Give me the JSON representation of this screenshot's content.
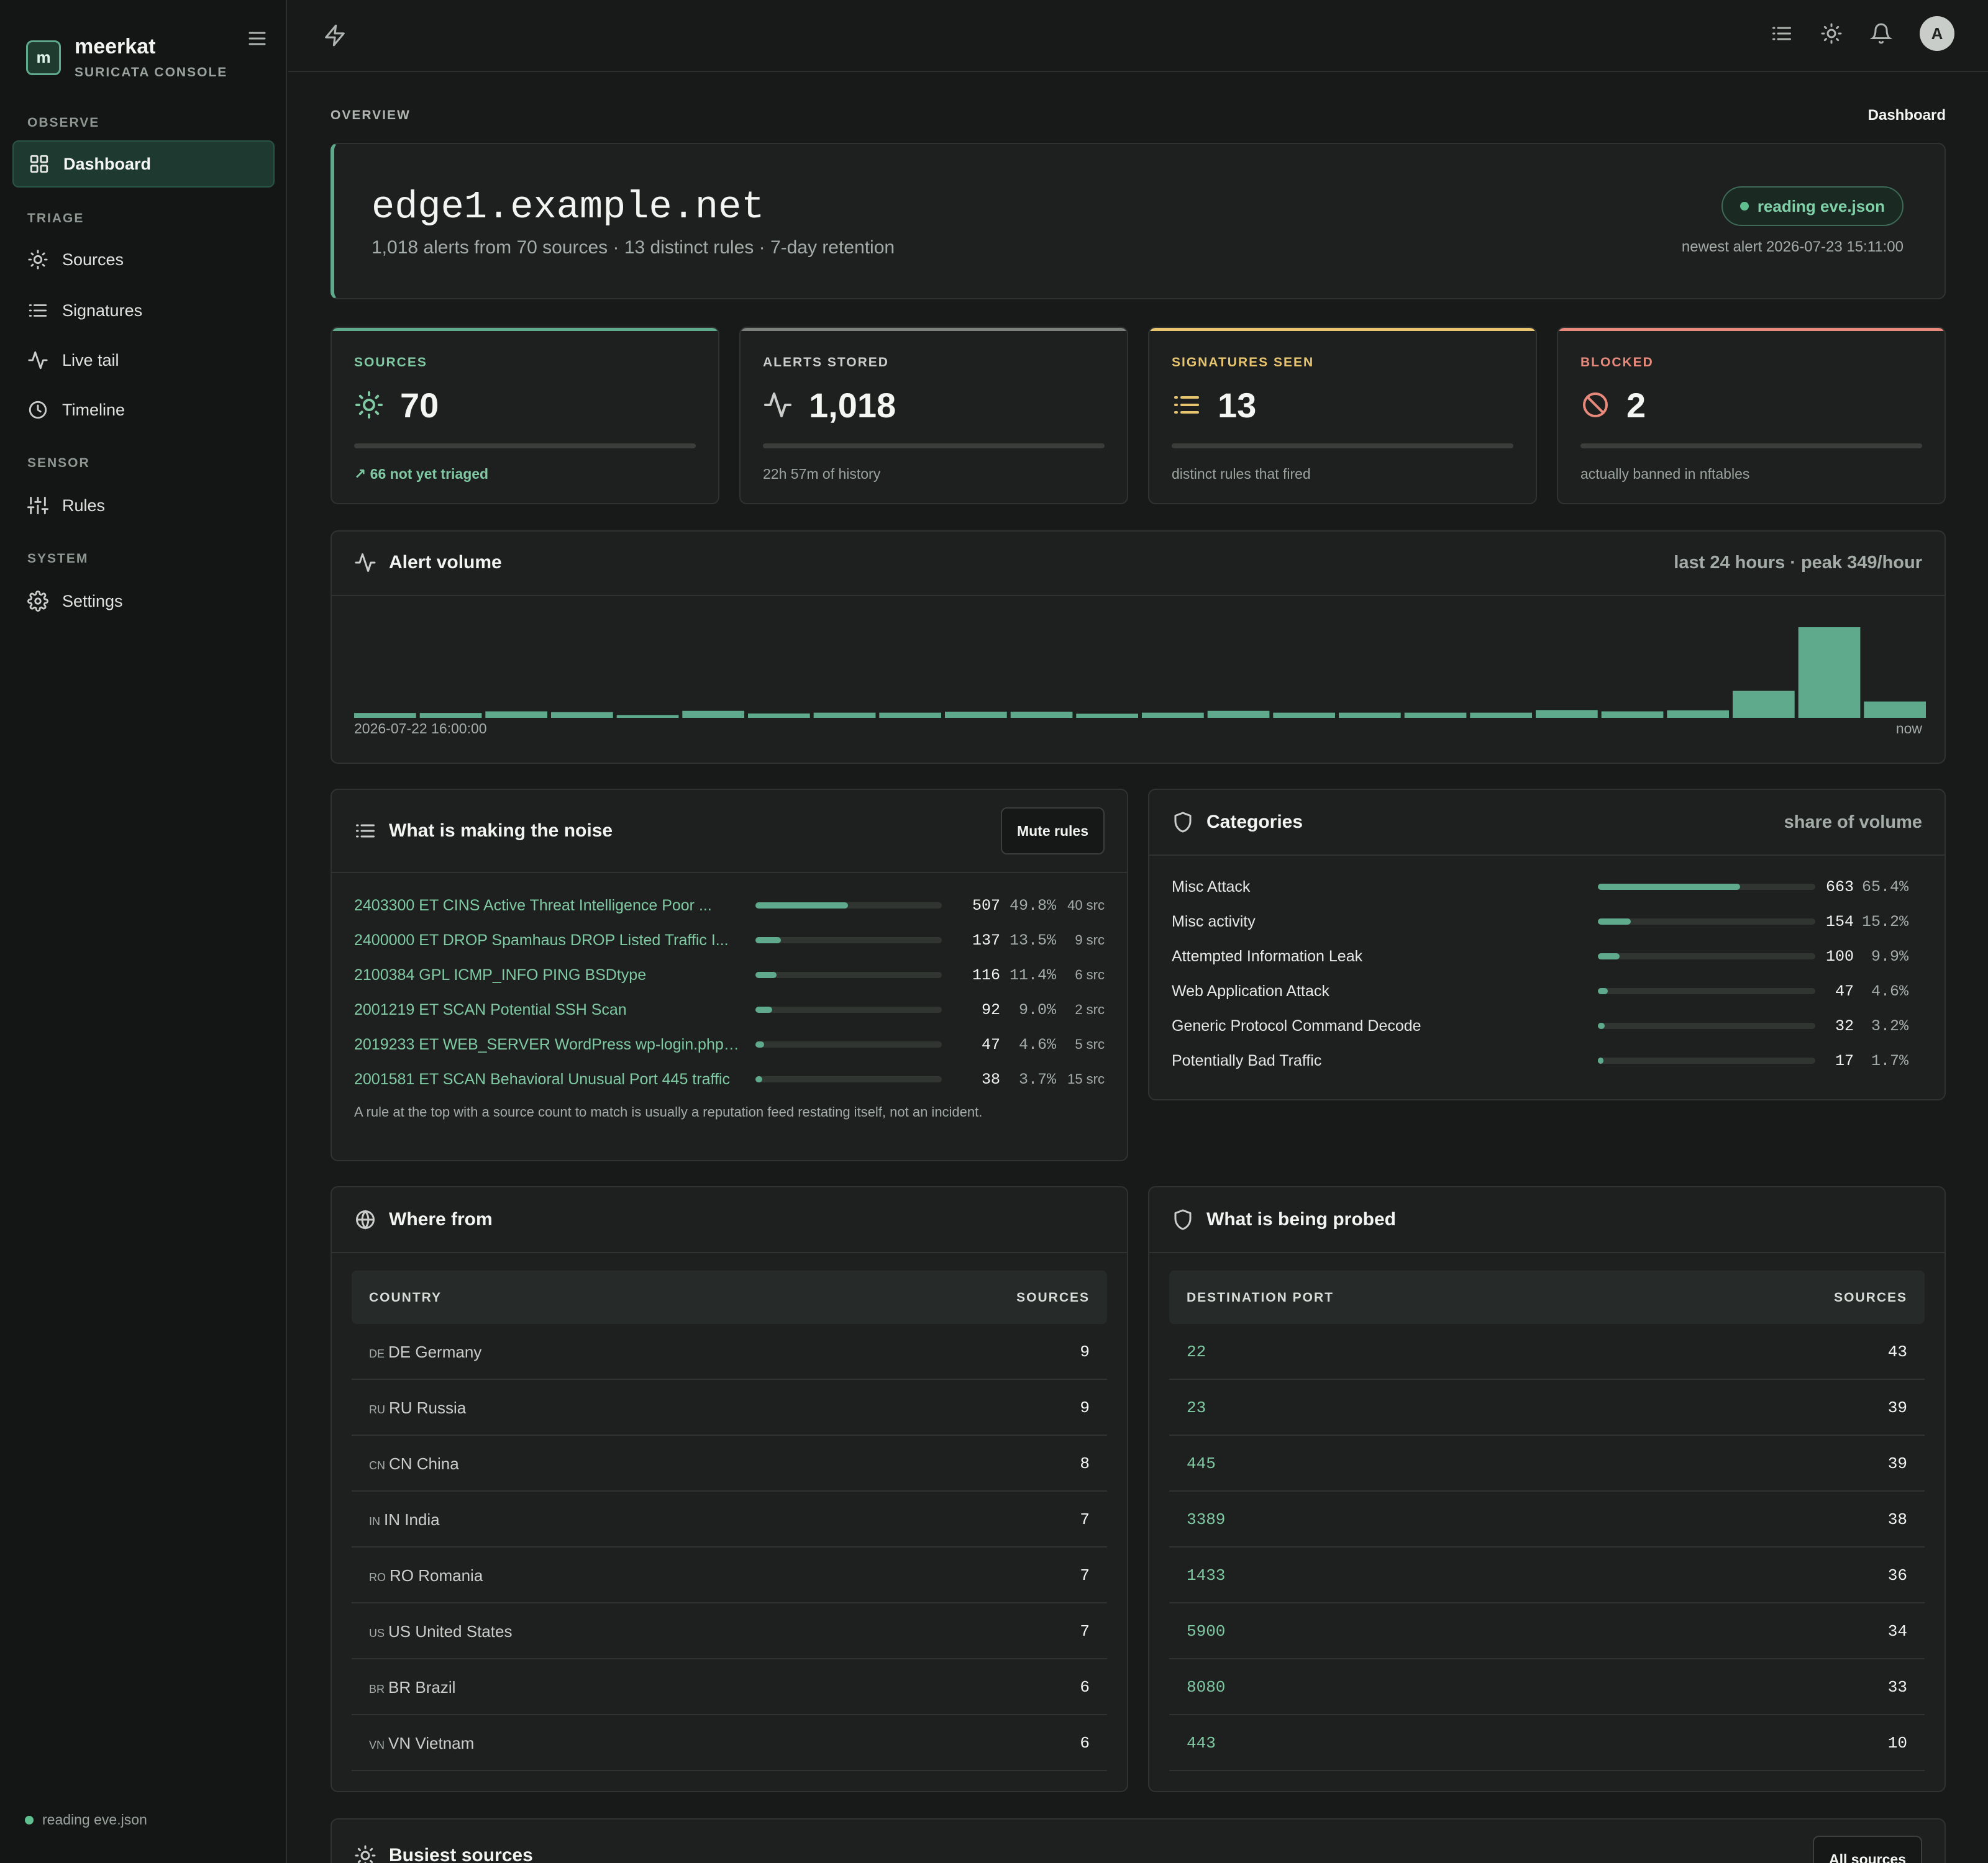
{
  "app": {
    "name": "meerkat",
    "subtitle": "SURICATA CONSOLE"
  },
  "nav": {
    "observe": "OBSERVE",
    "dashboard": "Dashboard",
    "triage": "TRIAGE",
    "sources": "Sources",
    "signatures": "Signatures",
    "live_tail": "Live tail",
    "timeline": "Timeline",
    "sensor": "SENSOR",
    "rules": "Rules",
    "system": "SYSTEM",
    "settings": "Settings",
    "footer_status": "reading eve.json"
  },
  "breadcrumb": {
    "section": "OVERVIEW",
    "page": "Dashboard"
  },
  "hero": {
    "host": "edge1.example.net",
    "summary": "1,018 alerts from 70 sources · 13 distinct rules · 7-day retention",
    "status": "reading eve.json",
    "newest": "newest alert 2026-07-23 15:11:00"
  },
  "stats": [
    {
      "label": "SOURCES",
      "value": "70",
      "note": "66 not yet triaged",
      "color": "#5fa98c",
      "icon": "sun-icon"
    },
    {
      "label": "ALERTS STORED",
      "value": "1,018",
      "note": "22h 57m of history",
      "color": "#7b807d",
      "icon": "activity-icon"
    },
    {
      "label": "SIGNATURES SEEN",
      "value": "13",
      "note": "distinct rules that fired",
      "color": "#e8c46e",
      "icon": "list-icon"
    },
    {
      "label": "BLOCKED",
      "value": "2",
      "note": "actually banned in nftables",
      "color": "#e8897b",
      "icon": "ban-icon"
    }
  ],
  "alert_volume": {
    "title": "Alert volume",
    "meta": "last 24 hours · peak 349/hour",
    "start_label": "2026-07-22 16:00:00",
    "end_label": "now"
  },
  "chart_data": {
    "type": "bar",
    "values": [
      19,
      19,
      25,
      22,
      11,
      27,
      17,
      20,
      20,
      24,
      24,
      16,
      20,
      27,
      20,
      20,
      20,
      20,
      30,
      25,
      29,
      104,
      349,
      63
    ],
    "ylim": [
      0,
      349
    ],
    "xlabel": "",
    "ylabel": "",
    "color": "#5fa98c"
  },
  "noise": {
    "title": "What is making the noise",
    "button": "Mute rules",
    "hint": "A rule at the top with a source count to match is usually a reputation feed restating itself, not an incident.",
    "rows": [
      {
        "sig": "2403300 ET CINS Active Threat Intelligence Poor ...",
        "count": "507",
        "pct": "49.8%",
        "src": "40 src",
        "share": 0.498
      },
      {
        "sig": "2400000 ET DROP Spamhaus DROP Listed Traffic I...",
        "count": "137",
        "pct": "13.5%",
        "src": "9 src",
        "share": 0.135
      },
      {
        "sig": "2100384 GPL ICMP_INFO PING BSDtype",
        "count": "116",
        "pct": "11.4%",
        "src": "6 src",
        "share": 0.114
      },
      {
        "sig": "2001219 ET SCAN Potential SSH Scan",
        "count": "92",
        "pct": "9.0%",
        "src": "2 src",
        "share": 0.09
      },
      {
        "sig": "2019233 ET WEB_SERVER WordPress wp-login.php ...",
        "count": "47",
        "pct": "4.6%",
        "src": "5 src",
        "share": 0.046
      },
      {
        "sig": "2001581 ET SCAN Behavioral Unusual Port 445 traffic",
        "count": "38",
        "pct": "3.7%",
        "src": "15 src",
        "share": 0.037
      }
    ]
  },
  "categories": {
    "title": "Categories",
    "meta": "share of volume",
    "rows": [
      {
        "name": "Misc Attack",
        "count": "663",
        "pct": "65.4%",
        "share": 0.654
      },
      {
        "name": "Misc activity",
        "count": "154",
        "pct": "15.2%",
        "share": 0.152
      },
      {
        "name": "Attempted Information Leak",
        "count": "100",
        "pct": "9.9%",
        "share": 0.099
      },
      {
        "name": "Web Application Attack",
        "count": "47",
        "pct": "4.6%",
        "share": 0.046
      },
      {
        "name": "Generic Protocol Command Decode",
        "count": "32",
        "pct": "3.2%",
        "share": 0.032
      },
      {
        "name": "Potentially Bad Traffic",
        "count": "17",
        "pct": "1.7%",
        "share": 0.017
      }
    ]
  },
  "where_from": {
    "title": "Where from",
    "col1": "COUNTRY",
    "col2": "SOURCES",
    "rows": [
      {
        "cc": "DE",
        "name": "DE Germany",
        "n": "9"
      },
      {
        "cc": "RU",
        "name": "RU Russia",
        "n": "9"
      },
      {
        "cc": "CN",
        "name": "CN China",
        "n": "8"
      },
      {
        "cc": "IN",
        "name": "IN India",
        "n": "7"
      },
      {
        "cc": "RO",
        "name": "RO Romania",
        "n": "7"
      },
      {
        "cc": "US",
        "name": "US United States",
        "n": "7"
      },
      {
        "cc": "BR",
        "name": "BR Brazil",
        "n": "6"
      },
      {
        "cc": "VN",
        "name": "VN Vietnam",
        "n": "6"
      }
    ]
  },
  "probed": {
    "title": "What is being probed",
    "col1": "DESTINATION PORT",
    "col2": "SOURCES",
    "rows": [
      {
        "port": "22",
        "n": "43"
      },
      {
        "port": "23",
        "n": "39"
      },
      {
        "port": "445",
        "n": "39"
      },
      {
        "port": "3389",
        "n": "38"
      },
      {
        "port": "1433",
        "n": "36"
      },
      {
        "port": "5900",
        "n": "34"
      },
      {
        "port": "8080",
        "n": "33"
      },
      {
        "port": "443",
        "n": "10"
      }
    ]
  },
  "busiest": {
    "title": "Busiest sources",
    "button": "All sources"
  }
}
